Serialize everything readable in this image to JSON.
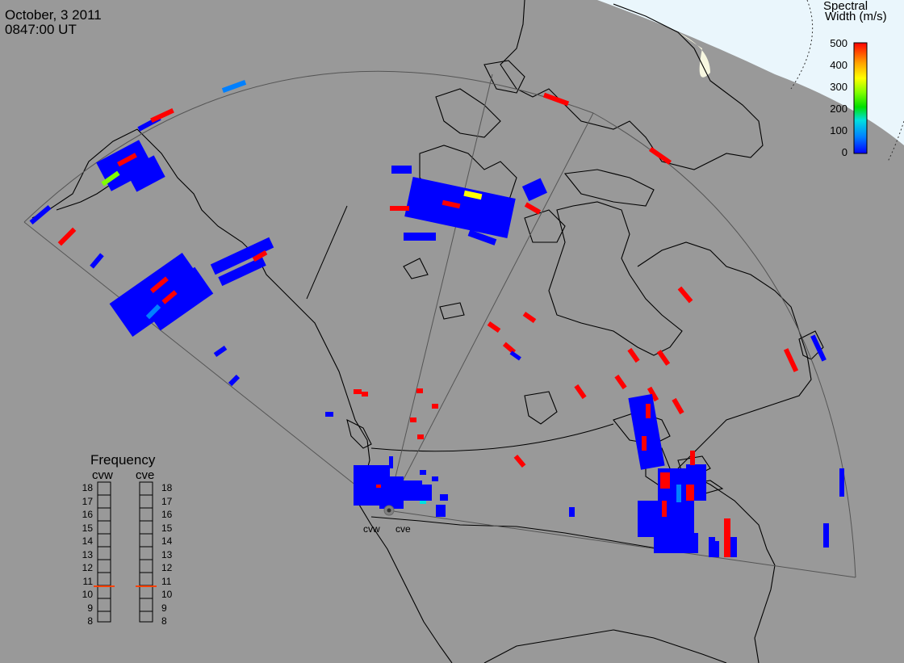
{
  "title": {
    "date": "October, 3 2011",
    "time": "0847:00 UT"
  },
  "colorbar": {
    "title_line1": "Spectral",
    "title_line2": "Width (m/s)",
    "ticks": [
      "500",
      "400",
      "300",
      "200",
      "100",
      "0"
    ],
    "range": [
      0,
      500
    ],
    "colors": [
      "#0000ff",
      "#0080ff",
      "#00e0e0",
      "#00e000",
      "#80ff00",
      "#ffff00",
      "#ffa000",
      "#ff0000"
    ]
  },
  "frequency_panel": {
    "title": "Frequency",
    "columns": [
      {
        "name": "cvw",
        "value_mhz": 10.9
      },
      {
        "name": "cve",
        "value_mhz": 10.9
      }
    ],
    "scale": [
      "18",
      "17",
      "16",
      "15",
      "14",
      "13",
      "12",
      "11",
      "10",
      "9",
      "8"
    ],
    "marker_color": "#ff4000"
  },
  "radars": [
    {
      "name": "cvw"
    },
    {
      "name": "cve"
    }
  ],
  "colors": {
    "background": "#999999",
    "ice": "#e8f4ff",
    "fov_line": "#555555",
    "coast": "#000000"
  }
}
